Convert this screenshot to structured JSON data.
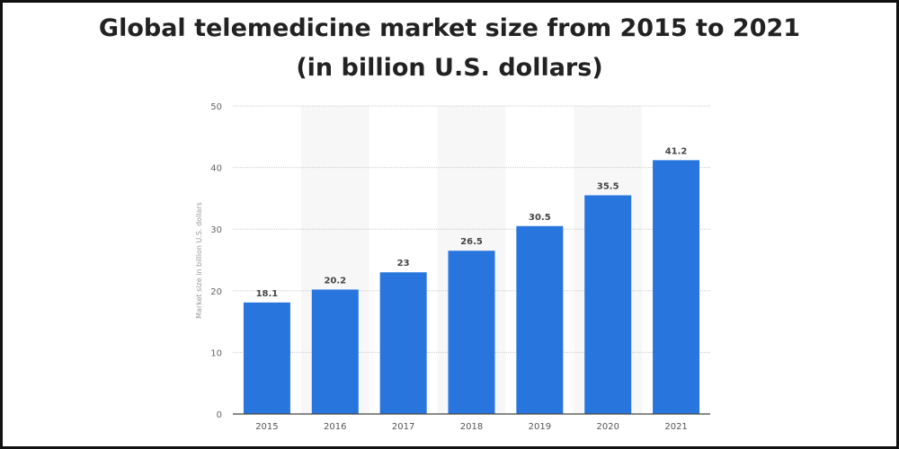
{
  "chart_data": {
    "type": "bar",
    "title": "Global telemedicine market size from 2015 to 2021",
    "subtitle": "(in billion U.S. dollars)",
    "xlabel": "",
    "ylabel": "Market size in billion U.S. dollars",
    "categories": [
      "2015",
      "2016",
      "2017",
      "2018",
      "2019",
      "2020",
      "2021"
    ],
    "values": [
      18.1,
      20.2,
      23,
      26.5,
      30.5,
      35.5,
      41.2
    ],
    "value_labels": [
      "18.1",
      "20.2",
      "23",
      "26.5",
      "30.5",
      "35.5",
      "41.2"
    ],
    "ylim": [
      0,
      50
    ],
    "yticks": [
      "0",
      "10",
      "20",
      "30",
      "40",
      "50"
    ],
    "grid": true,
    "bar_color": "#2876dd"
  }
}
